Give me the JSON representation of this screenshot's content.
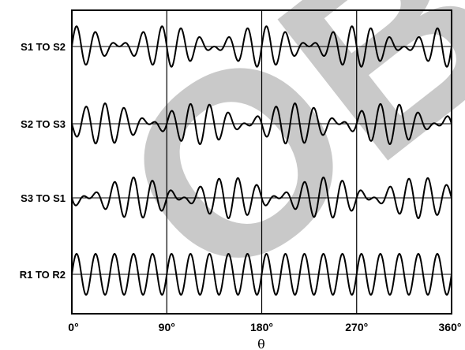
{
  "chart_data": {
    "type": "line",
    "title": "",
    "xlabel": "θ",
    "ylabel": "",
    "x_ticks": [
      "0°",
      "90°",
      "180°",
      "270°",
      "360°"
    ],
    "xlim": [
      0,
      360
    ],
    "grid_x": [
      90,
      180,
      270
    ],
    "carrier_cycles": 20,
    "series": [
      {
        "name": "S1 TO S2",
        "envelope_phase_deg": 0
      },
      {
        "name": "S2 TO S3",
        "envelope_phase_deg": 120
      },
      {
        "name": "S3 TO S1",
        "envelope_phase_deg": 240
      },
      {
        "name": "R1 TO R2",
        "envelope_phase_deg": null
      }
    ],
    "line_color": "#000000",
    "watermark": "OBS"
  }
}
